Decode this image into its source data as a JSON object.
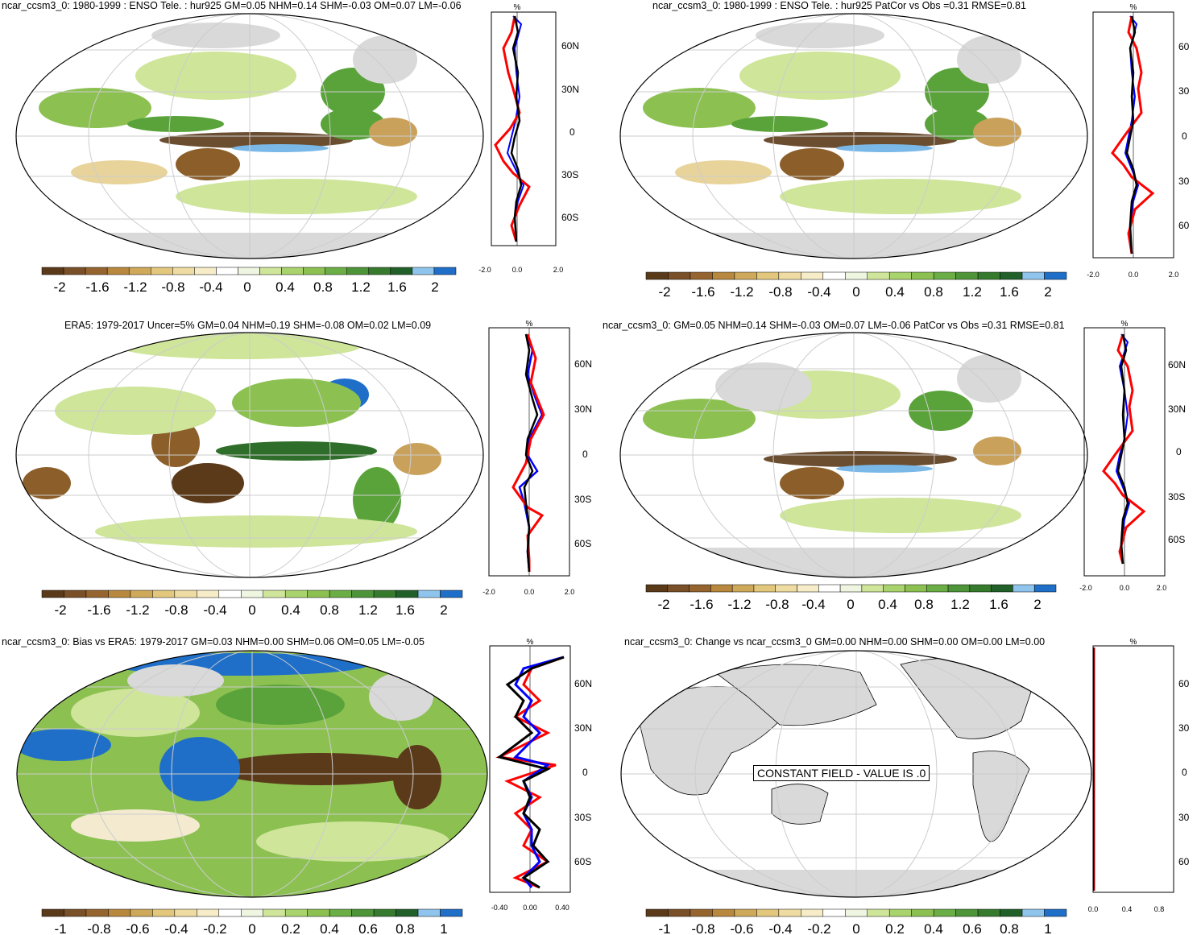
{
  "colors": {
    "brown_dark": "#5b3a1a",
    "brown": "#8c5f2a",
    "tan": "#c9a15a",
    "sand": "#e8d49a",
    "cream": "#f3ead0",
    "white": "#ffffff",
    "lightgreen": "#cfe59a",
    "green": "#8cc152",
    "midgreen": "#5aa33a",
    "darkgreen": "#2f6e2a",
    "lightblue": "#7ab8e8",
    "blue": "#1f6fc9",
    "land_gray": "#d9d9d9",
    "profile_red": "#ff0000",
    "profile_blue": "#0000ff",
    "profile_black": "#000000"
  },
  "colorbar_main": {
    "swatches": [
      "#5b3a1a",
      "#7a5028",
      "#96652f",
      "#b8883e",
      "#cfa95a",
      "#e2c77d",
      "#efdca3",
      "#f6ecc8",
      "#ffffff",
      "#eef5e0",
      "#cfe59a",
      "#a9d36c",
      "#8cc152",
      "#6aae45",
      "#4e9438",
      "#367a2e",
      "#22602a",
      "#8fc4ec",
      "#1f6fc9"
    ],
    "labels": [
      "-2",
      "-1.6",
      "-1.2",
      "-0.8",
      "-0.4",
      "0",
      "0.4",
      "0.8",
      "1.2",
      "1.6",
      "2"
    ]
  },
  "colorbar_bias": {
    "labels": [
      "-1",
      "-0.8",
      "-0.6",
      "-0.4",
      "-0.2",
      "0",
      "0.2",
      "0.4",
      "0.6",
      "0.8",
      "1"
    ]
  },
  "panels": [
    {
      "title": "ncar_ccsm3_0: 1980-1999 : ENSO Tele. : hur925 GM=0.05 NHM=0.14 SHM=-0.03 OM=0.07 LM=-0.06",
      "profile_unit": "%",
      "lat_labels": [
        "60N",
        "30N",
        "0",
        "30S",
        "60S"
      ],
      "x_labels": [
        "-2.0",
        "0.0",
        "2.0"
      ]
    },
    {
      "title": "ncar_ccsm3_0: 1980-1999 : ENSO Tele. : hur925 PatCor vs Obs =0.31 RMSE=0.81",
      "profile_unit": "%",
      "lat_labels": [
        "60",
        "30",
        "0",
        "30",
        "60"
      ],
      "x_labels": [
        "-2.0",
        "0.0",
        "2.0"
      ]
    },
    {
      "title": "ERA5: 1979-2017 Uncer=5% GM=0.04 NHM=0.19 SHM=-0.08 OM=0.02 LM=0.09",
      "profile_unit": "%",
      "lat_labels": [
        "60N",
        "30N",
        "0",
        "30S",
        "60S"
      ],
      "x_labels": [
        "-2.0",
        "0.0",
        "2.0"
      ]
    },
    {
      "title": "ncar_ccsm3_0: GM=0.05 NHM=0.14 SHM=-0.03 OM=0.07 LM=-0.06 PatCor vs Obs =0.31 RMSE=0.81",
      "profile_unit": "%",
      "lat_labels": [
        "60N",
        "30N",
        "0",
        "30S",
        "60S"
      ],
      "x_labels": [
        "-2.0",
        "0.0",
        "2.0"
      ]
    },
    {
      "title": "ncar_ccsm3_0: Bias vs ERA5: 1979-2017 GM=0.03 NHM=0.00 SHM=0.06 OM=0.05 LM=-0.05",
      "profile_unit": "%",
      "lat_labels": [
        "60N",
        "30N",
        "0",
        "30S",
        "60S"
      ],
      "x_labels": [
        "-0.40",
        "0.00",
        "0.40"
      ]
    },
    {
      "title": "ncar_ccsm3_0: Change vs ncar_ccsm3_0 GM=0.00 NHM=0.00 SHM=0.00 OM=0.00 LM=0.00",
      "profile_unit": "%",
      "lat_labels": [
        "60",
        "30",
        "0",
        "30",
        "60"
      ],
      "x_labels": [
        "0.0",
        "0.4",
        "0.8"
      ],
      "constant_note": "CONSTANT FIELD - VALUE IS .0"
    }
  ]
}
